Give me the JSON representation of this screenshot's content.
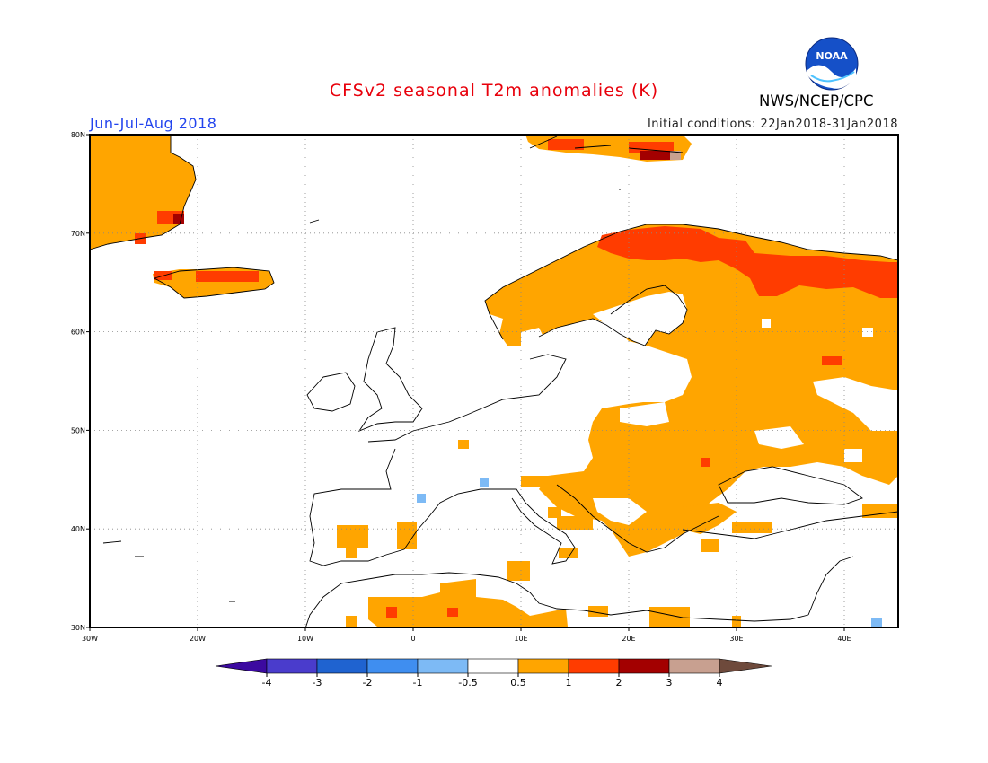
{
  "title": "CFSv2 seasonal T2m anomalies (K)",
  "season": "Jun-Jul-Aug 2018",
  "initial_conditions": "Initial conditions: 22Jan2018-31Jan2018",
  "agency": "NWS/NCEP/CPC",
  "logo_text": "NOAA",
  "map": {
    "projection": "lat-lon",
    "lon_range": [
      -30,
      45
    ],
    "lat_range": [
      30,
      80
    ],
    "lat_ticks": [
      "30N",
      "40N",
      "50N",
      "60N",
      "70N",
      "80N"
    ],
    "lon_ticks": [
      "30W",
      "20W",
      "10W",
      "0",
      "10E",
      "20E",
      "30E",
      "40E"
    ],
    "grid": "dotted"
  },
  "colorbar": {
    "labels": [
      "-4",
      "-3",
      "-2",
      "-1",
      "-0.5",
      "0.5",
      "1",
      "2",
      "3",
      "4"
    ],
    "colors": [
      "#3c0aa0",
      "#4a3ccc",
      "#1f63d0",
      "#3f8ef0",
      "#7dbaf5",
      "#ffffff",
      "#ffa500",
      "#ff3c00",
      "#a30000",
      "#c8a090",
      "#6e4a3c"
    ]
  },
  "anomaly_classes": {
    "a": "#ffa500",
    "b": "#ff3c00",
    "c": "#a30000",
    "d": "#c8a090",
    "n": "#7dbaf5"
  }
}
